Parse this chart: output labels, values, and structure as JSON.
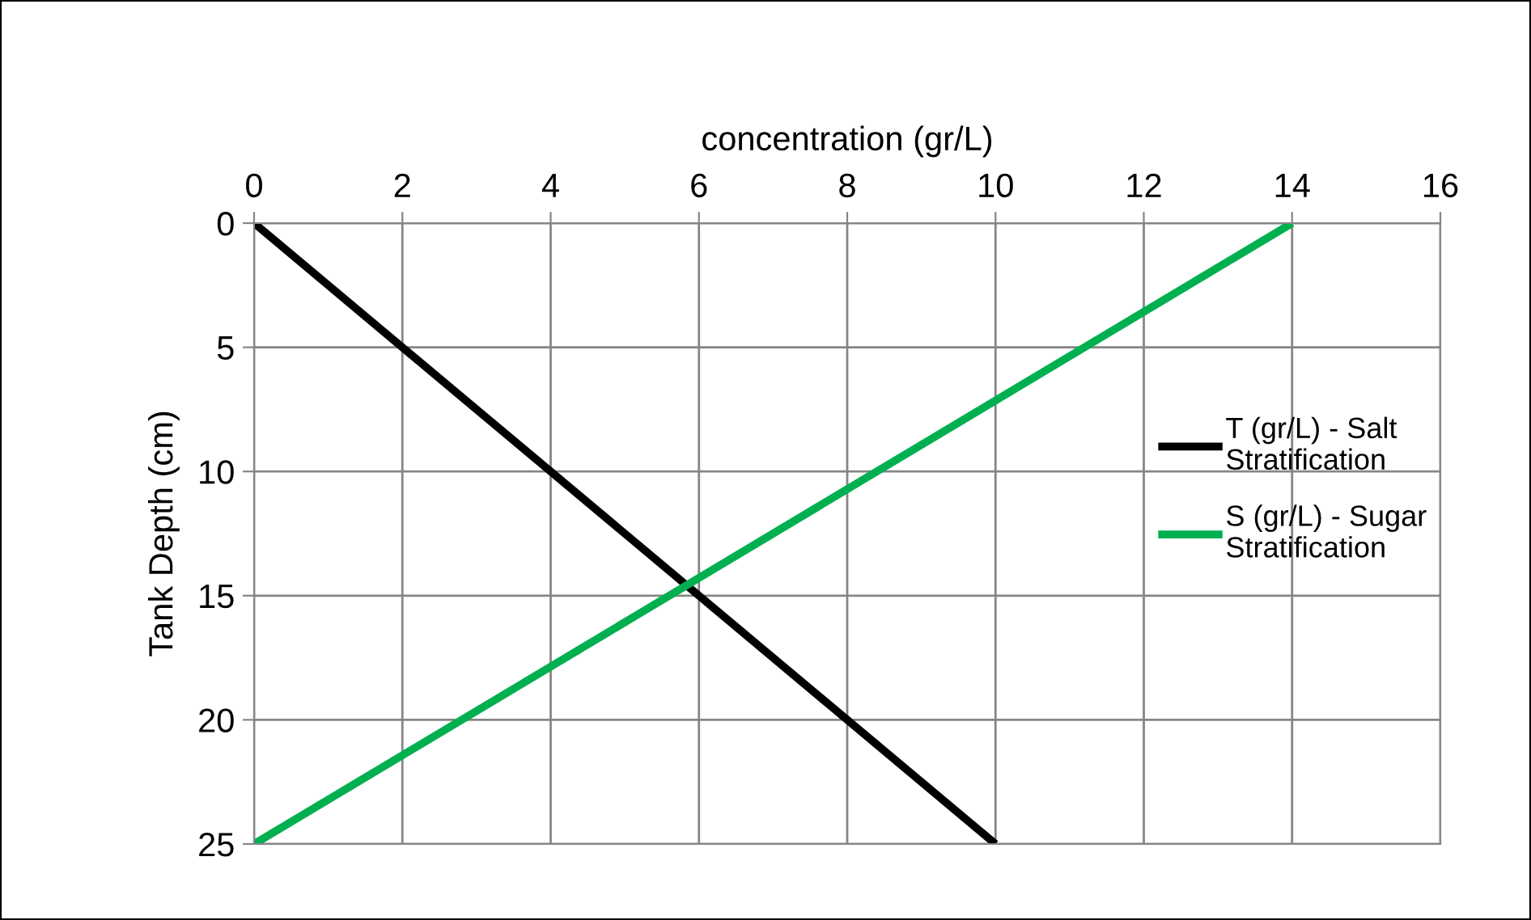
{
  "chart_data": {
    "type": "line",
    "xlabel": "concentration (gr/L)",
    "ylabel": "Tank Depth (cm)",
    "xlim": [
      0,
      16
    ],
    "xticks": [
      0,
      2,
      4,
      6,
      8,
      10,
      12,
      14,
      16
    ],
    "ylim": [
      25,
      0
    ],
    "yticks": [
      0,
      5,
      10,
      15,
      20,
      25
    ],
    "grid": true,
    "legend": "right",
    "marker": "none",
    "line_style": "solid",
    "series": [
      {
        "name": "T (gr/L) - Salt Stratification",
        "color": "#000000",
        "x": [
          0,
          10
        ],
        "values": [
          0,
          25
        ]
      },
      {
        "name": "S (gr/L) - Sugar Stratification",
        "color": "#00b050",
        "x": [
          14,
          0
        ],
        "values": [
          0,
          25
        ]
      }
    ]
  }
}
